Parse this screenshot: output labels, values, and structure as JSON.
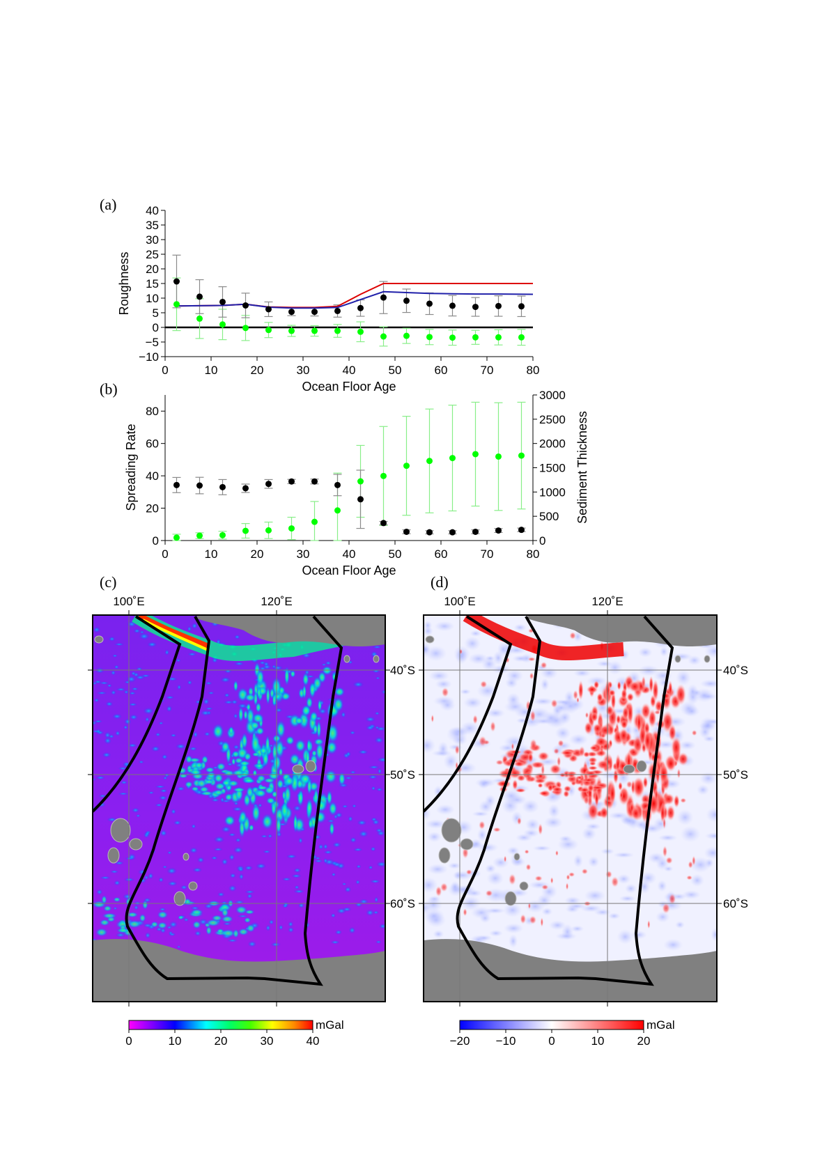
{
  "chart_data": [
    {
      "id": "a",
      "panel_label": "(a)",
      "type": "scatter",
      "xlabel": "Ocean Floor Age",
      "ylabel": "Roughness",
      "xlim": [
        0,
        80
      ],
      "ylim": [
        -10,
        40
      ],
      "xticks": [
        0,
        10,
        20,
        30,
        40,
        50,
        60,
        70,
        80
      ],
      "yticks": [
        -10,
        -5,
        0,
        5,
        10,
        15,
        20,
        25,
        30,
        35,
        40
      ],
      "x": [
        2.5,
        7.5,
        12.5,
        17.5,
        22.5,
        27.5,
        32.5,
        37.5,
        42.5,
        47.5,
        52.5,
        57.5,
        62.5,
        67.5,
        72.5,
        77.5
      ],
      "series": [
        {
          "color": "#000000",
          "kind": "points",
          "values": [
            15.7,
            10.5,
            8.7,
            7.5,
            6.2,
            5.3,
            5.3,
            5.6,
            6.6,
            10.2,
            9.1,
            8.1,
            7.4,
            7.0,
            7.3,
            7.2
          ],
          "err": [
            9.0,
            5.8,
            5.2,
            4.2,
            2.5,
            1.3,
            1.4,
            2.1,
            2.8,
            5.5,
            4.0,
            3.7,
            3.5,
            3.2,
            3.5,
            3.5
          ]
        },
        {
          "color": "#00ff00",
          "kind": "points",
          "values": [
            7.9,
            3.0,
            1.0,
            -0.2,
            -0.9,
            -1.2,
            -1.2,
            -1.2,
            -1.5,
            -3.1,
            -2.9,
            -3.3,
            -3.5,
            -3.4,
            -3.4,
            -3.4
          ],
          "err": [
            9.0,
            6.8,
            5.2,
            4.3,
            2.6,
            1.9,
            1.8,
            2.2,
            3.4,
            3.3,
            2.6,
            2.6,
            2.6,
            2.4,
            2.6,
            2.7
          ]
        },
        {
          "color": "#dd0000",
          "kind": "line",
          "x": [
            2.5,
            12.5,
            17.5,
            22.5,
            27.5,
            32.5,
            37.5,
            42.5,
            47.5,
            52.5,
            57.5,
            62.5,
            67.5,
            72.5,
            80
          ],
          "values": [
            7.3,
            7.5,
            7.9,
            7.0,
            6.8,
            6.8,
            7.2,
            11.3,
            15.0,
            15.0,
            15.0,
            15.0,
            15.0,
            15.0,
            15.0
          ]
        },
        {
          "color": "#2020aa",
          "kind": "line",
          "x": [
            2.5,
            12.5,
            17.5,
            22.5,
            27.5,
            32.5,
            37.5,
            42.5,
            47.5,
            52.5,
            57.5,
            62.5,
            67.5,
            72.5,
            80
          ],
          "values": [
            7.3,
            7.5,
            7.9,
            6.9,
            6.6,
            6.6,
            6.8,
            9.5,
            12.2,
            11.9,
            11.6,
            11.5,
            11.4,
            11.4,
            11.3
          ]
        }
      ]
    },
    {
      "id": "b",
      "panel_label": "(b)",
      "type": "scatter",
      "xlabel": "Ocean Floor Age",
      "ylabel": "Spreading Rate",
      "y2label": "Sediment Thickness",
      "xlim": [
        0,
        80
      ],
      "ylim": [
        0,
        90
      ],
      "y2lim": [
        0,
        3000
      ],
      "xticks": [
        0,
        10,
        20,
        30,
        40,
        50,
        60,
        70,
        80
      ],
      "yticks": [
        0,
        20,
        40,
        60,
        80
      ],
      "y2ticks": [
        0,
        500,
        1000,
        1500,
        2000,
        2500,
        3000
      ],
      "x": [
        2.5,
        7.5,
        12.5,
        17.5,
        22.5,
        27.5,
        32.5,
        37.5,
        42.5,
        47.5,
        52.5,
        57.5,
        62.5,
        67.5,
        72.5,
        77.5
      ],
      "series": [
        {
          "color": "#000000",
          "axis": "left",
          "values": [
            34.3,
            34.0,
            33.0,
            32.3,
            35.0,
            36.5,
            36.5,
            34.3,
            25.5,
            10.8,
            5.4,
            5.1,
            5.1,
            5.4,
            6.2,
            6.6
          ],
          "err": [
            4.7,
            5.1,
            4.7,
            2.6,
            2.7,
            1.3,
            1.5,
            6.6,
            18.0,
            1.0,
            1.2,
            1.0,
            1.0,
            1.2,
            1.2,
            1.1
          ]
        },
        {
          "color": "#00ff00",
          "axis": "right",
          "values": [
            60,
            100,
            110,
            200,
            210,
            250,
            385,
            620,
            1220,
            1330,
            1540,
            1640,
            1700,
            1780,
            1730,
            1750
          ],
          "err": [
            70,
            60,
            80,
            150,
            170,
            230,
            420,
            770,
            740,
            1020,
            1020,
            1070,
            1090,
            1070,
            1110,
            1100
          ]
        }
      ]
    },
    {
      "id": "c",
      "panel_label": "(c)",
      "type": "heatmap",
      "lon_labels": [
        "100˚E",
        "120˚E"
      ],
      "colorbar": {
        "unit": "mGal",
        "ticks": [
          "0",
          "10",
          "20",
          "30",
          "40"
        ],
        "colors": [
          "#ff00ff",
          "#8800ff",
          "#0000ff",
          "#00ffff",
          "#00ff66",
          "#44ff00",
          "#ffff00",
          "#ff8800",
          "#ff0000"
        ]
      }
    },
    {
      "id": "d",
      "panel_label": "(d)",
      "type": "heatmap",
      "lon_labels": [
        "100˚E",
        "120˚E"
      ],
      "lat_labels": [
        "40˚S",
        "50˚S",
        "60˚S"
      ],
      "colorbar": {
        "unit": "mGal",
        "ticks": [
          "−20",
          "−10",
          "0",
          "10",
          "20"
        ],
        "colors": [
          "#0000ff",
          "#ffffff",
          "#ff0000"
        ]
      }
    }
  ]
}
